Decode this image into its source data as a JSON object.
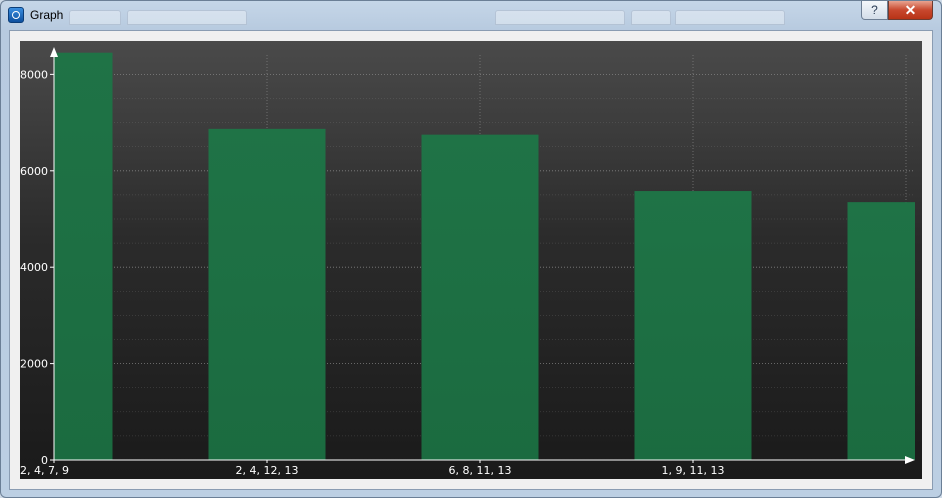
{
  "window": {
    "title": "Graph",
    "help_glyph": "?",
    "close_glyph": "✕",
    "icon": "app-icon"
  },
  "colors": {
    "bar": "#1b6b40",
    "bar_top": "#1f7346",
    "background_top": "#4a4a4a",
    "background_bottom": "#1a1a1a",
    "axis": "#ffffff",
    "grid": "#8a8a8a"
  },
  "chart_data": {
    "type": "bar",
    "categories": [
      "2, 4, 7, 9",
      "2, 4, 12, 13",
      "6, 8, 11, 13",
      "1, 9, 11, 13",
      ""
    ],
    "values": [
      8450,
      6870,
      6750,
      5580,
      5350
    ],
    "title": "",
    "xlabel": "",
    "ylabel": "",
    "ylim": [
      0,
      8500
    ],
    "yticks": [
      0,
      2000,
      4000,
      6000,
      8000
    ],
    "grid": true,
    "legend": "none"
  }
}
